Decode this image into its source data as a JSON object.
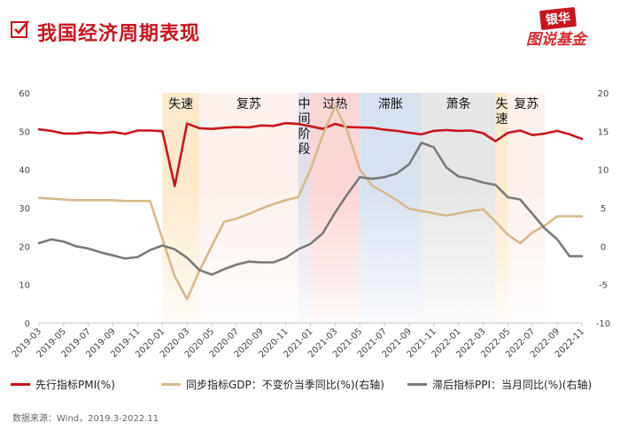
{
  "header": {
    "title": "我国经济周期表现",
    "logo_top": "银华",
    "logo_bottom": "图说基金"
  },
  "source": "数据来源：Wind，2019.3-2022.11",
  "legend": [
    {
      "label": "先行指标PMI(%)",
      "color": "#c8161d"
    },
    {
      "label": "同步指标GDP：不变价当季同比(%)(右轴)",
      "color": "#d7b98a"
    },
    {
      "label": "滞后指标PPI：当月同比(%)(右轴)",
      "color": "#7b7b7b"
    }
  ],
  "chart_data": {
    "type": "line",
    "title": "我国经济周期表现",
    "x": [
      "2019-03",
      "2019-04",
      "2019-05",
      "2019-06",
      "2019-07",
      "2019-08",
      "2019-09",
      "2019-10",
      "2019-11",
      "2019-12",
      "2020-01",
      "2020-02",
      "2020-03",
      "2020-04",
      "2020-05",
      "2020-06",
      "2020-07",
      "2020-08",
      "2020-09",
      "2020-10",
      "2020-11",
      "2020-12",
      "2021-01",
      "2021-02",
      "2021-03",
      "2021-04",
      "2021-05",
      "2021-06",
      "2021-07",
      "2021-08",
      "2021-09",
      "2021-10",
      "2021-11",
      "2021-12",
      "2022-01",
      "2022-02",
      "2022-03",
      "2022-04",
      "2022-05",
      "2022-06",
      "2022-07",
      "2022-08",
      "2022-09",
      "2022-10",
      "2022-11"
    ],
    "x_tick_labels": [
      "2019-03",
      "2019-05",
      "2019-07",
      "2019-09",
      "2019-11",
      "2020-01",
      "2020-03",
      "2020-05",
      "2020-07",
      "2020-09",
      "2020-11",
      "2021-01",
      "2021-03",
      "2021-05",
      "2021-07",
      "2021-09",
      "2021-11",
      "2022-01",
      "2022-03",
      "2022-05",
      "2022-07",
      "2022-09",
      "2022-11"
    ],
    "y_left_ticks": [
      0,
      10,
      20,
      30,
      40,
      50,
      60
    ],
    "y_right_ticks": [
      -10,
      -5,
      0,
      5,
      10,
      15,
      20
    ],
    "ylim_left": [
      0,
      60
    ],
    "ylim_right": [
      -10,
      20
    ],
    "series": [
      {
        "name": "先行指标PMI(%)",
        "axis": "left",
        "color": "#c8161d",
        "values": [
          50.5,
          50.1,
          49.4,
          49.4,
          49.7,
          49.5,
          49.8,
          49.3,
          50.2,
          50.2,
          50.0,
          35.7,
          52.0,
          50.8,
          50.6,
          50.9,
          51.1,
          51.0,
          51.5,
          51.4,
          52.1,
          51.9,
          51.3,
          50.6,
          51.9,
          51.1,
          51.0,
          50.9,
          50.4,
          50.1,
          49.6,
          49.2,
          50.1,
          50.3,
          50.1,
          50.2,
          49.5,
          47.4,
          49.6,
          50.2,
          49.0,
          49.4,
          50.1,
          49.2,
          48.0
        ]
      },
      {
        "name": "同步指标GDP：不变价当季同比(%)(右轴)",
        "axis": "right",
        "color": "#d7b98a",
        "values": [
          6.3,
          6.2,
          6.1,
          6.0,
          6.0,
          6.0,
          6.0,
          5.9,
          5.9,
          5.9,
          1.0,
          -3.9,
          -6.9,
          -3.2,
          0.0,
          3.2,
          3.6,
          4.2,
          4.9,
          5.5,
          6.0,
          6.4,
          10.0,
          14.5,
          18.3,
          15.0,
          10.0,
          7.9,
          7.0,
          6.0,
          4.9,
          4.6,
          4.3,
          4.0,
          4.3,
          4.6,
          4.8,
          3.2,
          1.5,
          0.4,
          1.8,
          2.7,
          3.9,
          3.9,
          3.9
        ]
      },
      {
        "name": "滞后指标PPI：当月同比(%)(右轴)",
        "axis": "right",
        "color": "#7b7b7b",
        "values": [
          0.4,
          0.9,
          0.6,
          0.0,
          -0.3,
          -0.8,
          -1.2,
          -1.6,
          -1.4,
          -0.5,
          0.1,
          -0.4,
          -1.5,
          -3.1,
          -3.7,
          -3.0,
          -2.4,
          -2.0,
          -2.1,
          -2.1,
          -1.5,
          -0.4,
          0.3,
          1.7,
          4.4,
          6.8,
          9.0,
          8.8,
          9.0,
          9.5,
          10.7,
          13.5,
          12.9,
          10.3,
          9.1,
          8.8,
          8.3,
          8.0,
          6.4,
          6.1,
          4.2,
          2.3,
          0.9,
          -1.3,
          -1.3
        ]
      }
    ],
    "phases": [
      {
        "label": "失速",
        "start": "2020-01",
        "end": "2020-04",
        "color": "#fde8c8"
      },
      {
        "label": "复苏",
        "start": "2020-04",
        "end": "2020-12",
        "color": "#fdf1ec"
      },
      {
        "label": "中间阶段",
        "start": "2020-12",
        "end": "2021-01",
        "color": "#dedbe8"
      },
      {
        "label": "过热",
        "start": "2021-01",
        "end": "2021-05",
        "color": "#f9d2d0"
      },
      {
        "label": "滞胀",
        "start": "2021-05",
        "end": "2021-10",
        "color": "#d4deee"
      },
      {
        "label": "萧条",
        "start": "2021-10",
        "end": "2022-04",
        "color": "#e3e3e3"
      },
      {
        "label": "失速",
        "start": "2022-04",
        "end": "2022-05",
        "color": "#fde8c8"
      },
      {
        "label": "复苏",
        "start": "2022-05",
        "end": "2022-08",
        "color": "#fdf1ec"
      }
    ]
  }
}
